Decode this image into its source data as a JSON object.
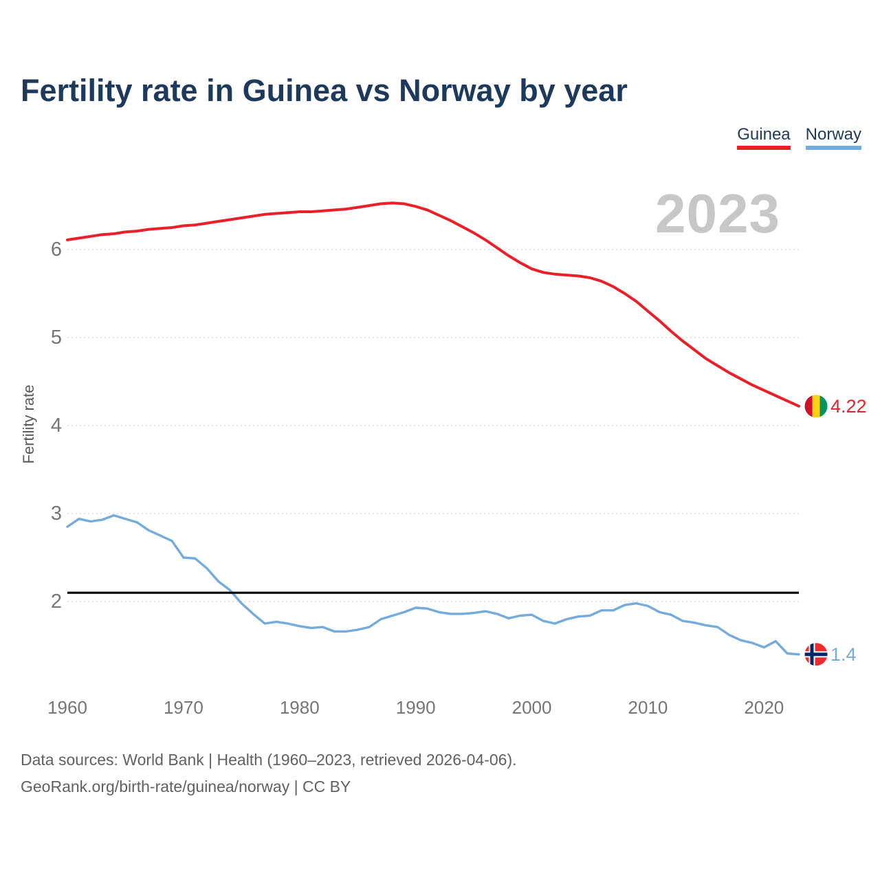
{
  "header": {
    "title": "Fertility rate in Guinea vs Norway by year"
  },
  "legend": [
    {
      "label": "Guinea",
      "color": "#ec1e27"
    },
    {
      "label": "Norway",
      "color": "#74abdd"
    }
  ],
  "watermark": "2023",
  "end_labels": {
    "guinea": "4.22",
    "norway": "1.4"
  },
  "footer": {
    "line1": "Data sources: World Bank | Health (1960–2023, retrieved 2026-04-06).",
    "line2": "GeoRank.org/birth-rate/guinea/norway | CC BY"
  },
  "icons": {
    "guinea_flag": {
      "stripes": [
        "#CE1126",
        "#FCD116",
        "#009460"
      ]
    },
    "norway_flag": {
      "field": "#EF2B2D",
      "cross_outer": "#ffffff",
      "cross_inner": "#002868"
    }
  },
  "chart_data": {
    "type": "line",
    "title": "Fertility rate in Guinea vs Norway by year",
    "xlabel": "",
    "ylabel": "Fertility rate",
    "ylim": [
      1.1,
      6.9
    ],
    "xlim": [
      1960,
      2023
    ],
    "grid": "horizontal-dotted",
    "gridline_color": "#dcdcdc",
    "reference_line": {
      "value": 2.1,
      "color": "#000000"
    },
    "legend_position": "top-right",
    "y_ticks": [
      6,
      5,
      4,
      3,
      2
    ],
    "x_ticks": [
      1960,
      1970,
      1980,
      1990,
      2000,
      2010,
      2020
    ],
    "x": [
      1960,
      1961,
      1962,
      1963,
      1964,
      1965,
      1966,
      1967,
      1968,
      1969,
      1970,
      1971,
      1972,
      1973,
      1974,
      1975,
      1976,
      1977,
      1978,
      1979,
      1980,
      1981,
      1982,
      1983,
      1984,
      1985,
      1986,
      1987,
      1988,
      1989,
      1990,
      1991,
      1992,
      1993,
      1994,
      1995,
      1996,
      1997,
      1998,
      1999,
      2000,
      2001,
      2002,
      2003,
      2004,
      2005,
      2006,
      2007,
      2008,
      2009,
      2010,
      2011,
      2012,
      2013,
      2014,
      2015,
      2016,
      2017,
      2018,
      2019,
      2020,
      2021,
      2022,
      2023
    ],
    "series": [
      {
        "name": "Guinea",
        "color": "#ec1e27",
        "last_value_label": "4.22",
        "values": [
          6.11,
          6.13,
          6.15,
          6.17,
          6.18,
          6.2,
          6.21,
          6.23,
          6.24,
          6.25,
          6.27,
          6.28,
          6.3,
          6.32,
          6.34,
          6.36,
          6.38,
          6.4,
          6.41,
          6.42,
          6.43,
          6.43,
          6.44,
          6.45,
          6.46,
          6.48,
          6.5,
          6.52,
          6.53,
          6.52,
          6.49,
          6.45,
          6.39,
          6.33,
          6.26,
          6.19,
          6.11,
          6.02,
          5.93,
          5.85,
          5.78,
          5.74,
          5.72,
          5.71,
          5.7,
          5.68,
          5.64,
          5.58,
          5.5,
          5.41,
          5.3,
          5.19,
          5.07,
          4.96,
          4.86,
          4.76,
          4.68,
          4.6,
          4.53,
          4.46,
          4.4,
          4.34,
          4.28,
          4.22
        ]
      },
      {
        "name": "Norway",
        "color": "#74abdd",
        "last_value_label": "1.4",
        "values": [
          2.85,
          2.94,
          2.91,
          2.93,
          2.98,
          2.94,
          2.9,
          2.81,
          2.75,
          2.69,
          2.5,
          2.49,
          2.38,
          2.23,
          2.13,
          1.98,
          1.86,
          1.75,
          1.77,
          1.75,
          1.72,
          1.7,
          1.71,
          1.66,
          1.66,
          1.68,
          1.71,
          1.8,
          1.84,
          1.88,
          1.93,
          1.92,
          1.88,
          1.86,
          1.86,
          1.87,
          1.89,
          1.86,
          1.81,
          1.84,
          1.85,
          1.78,
          1.75,
          1.8,
          1.83,
          1.84,
          1.9,
          1.9,
          1.96,
          1.98,
          1.95,
          1.88,
          1.85,
          1.78,
          1.76,
          1.73,
          1.71,
          1.62,
          1.56,
          1.53,
          1.48,
          1.55,
          1.41,
          1.4
        ]
      }
    ]
  }
}
